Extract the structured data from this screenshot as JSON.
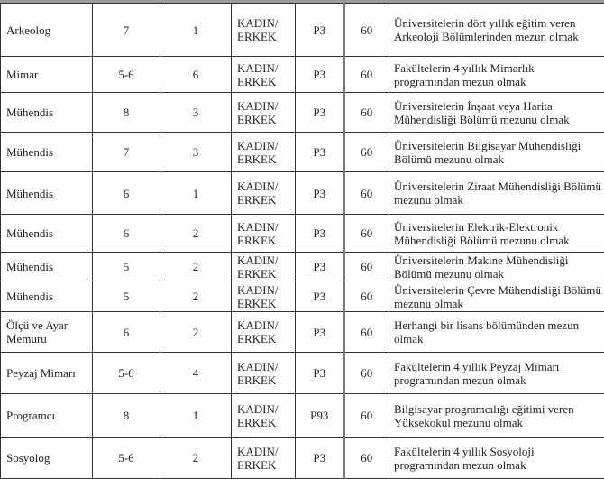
{
  "rows": [
    {
      "title": "Arkeolog",
      "level": "7",
      "count": "1",
      "gender": "KADIN/ ERKEK",
      "score_type": "P3",
      "min_score": "60",
      "requirement": "Üniversitelerin dört yıllık eğitim veren Arkeoloji Bölümlerinden mezun olmak"
    },
    {
      "title": "Mimar",
      "level": "5-6",
      "count": "6",
      "gender": "KADIN/ ERKEK",
      "score_type": "P3",
      "min_score": "60",
      "requirement": "Fakültelerin 4 yıllık Mimarlık programından mezun olmak"
    },
    {
      "title": "Mühendis",
      "level": "8",
      "count": "3",
      "gender": "KADIN/ ERKEK",
      "score_type": "P3",
      "min_score": "60",
      "requirement": "Üniversitelerin İnşaat veya Harita Mühendisliği Bölümü mezunu olmak"
    },
    {
      "title": "Mühendis",
      "level": "7",
      "count": "3",
      "gender": "KADIN/ ERKEK",
      "score_type": "P3",
      "min_score": "60",
      "requirement": "Üniversitelerin Bilgisayar Mühendisliği Bölümü mezunu olmak"
    },
    {
      "title": "Mühendis",
      "level": "6",
      "count": "1",
      "gender": "KADIN/ ERKEK",
      "score_type": "P3",
      "min_score": "60",
      "requirement": "Üniversitelerin Ziraat Mühendisliği  Bölümü mezunu olmak"
    },
    {
      "title": "Mühendis",
      "level": "6",
      "count": "2",
      "gender": "KADIN/ ERKEK",
      "score_type": "P3",
      "min_score": "60",
      "requirement": "Üniversitelerin Elektrik-Elektronik Mühendisliği Bölümü mezunu olmak"
    },
    {
      "title": "Mühendis",
      "level": "5",
      "count": "2",
      "gender": "KADIN/ ERKEK",
      "score_type": "P3",
      "min_score": "60",
      "requirement": "Üniversitelerin Makine Mühendisliği Bölümü mezunu olmak"
    },
    {
      "title": "Mühendis",
      "level": "5",
      "count": "2",
      "gender": "KADIN/ ERKEK",
      "score_type": "P3",
      "min_score": "60",
      "requirement": "Üniversitelerin Çevre Mühendisliği Bölümü mezunu olmak"
    },
    {
      "title": "Ölçü ve Ayar Memuru",
      "level": "6",
      "count": "2",
      "gender": "KADIN/ ERKEK",
      "score_type": "P3",
      "min_score": "60",
      "requirement": "Herhangi bir lisans bölümünden mezun olmak"
    },
    {
      "title": "Peyzaj Mimarı",
      "level": "5-6",
      "count": "4",
      "gender": "KADIN/ ERKEK",
      "score_type": "P3",
      "min_score": "60",
      "requirement": "Fakültelerin 4 yıllık Peyzaj Mimarı programından mezun olmak"
    },
    {
      "title": "Programcı",
      "level": "8",
      "count": "1",
      "gender": "KADIN/ ERKEK",
      "score_type": "P93",
      "min_score": "60",
      "requirement": "Bilgisayar programcılığı eğitimi veren Yüksekokul mezunu olmak"
    },
    {
      "title": "Sosyolog",
      "level": "5-6",
      "count": "2",
      "gender": "KADIN/ ERKEK",
      "score_type": "P3",
      "min_score": "60",
      "requirement": "Fakültelerin 4 yıllık Sosyoloji programından mezun olmak"
    }
  ]
}
